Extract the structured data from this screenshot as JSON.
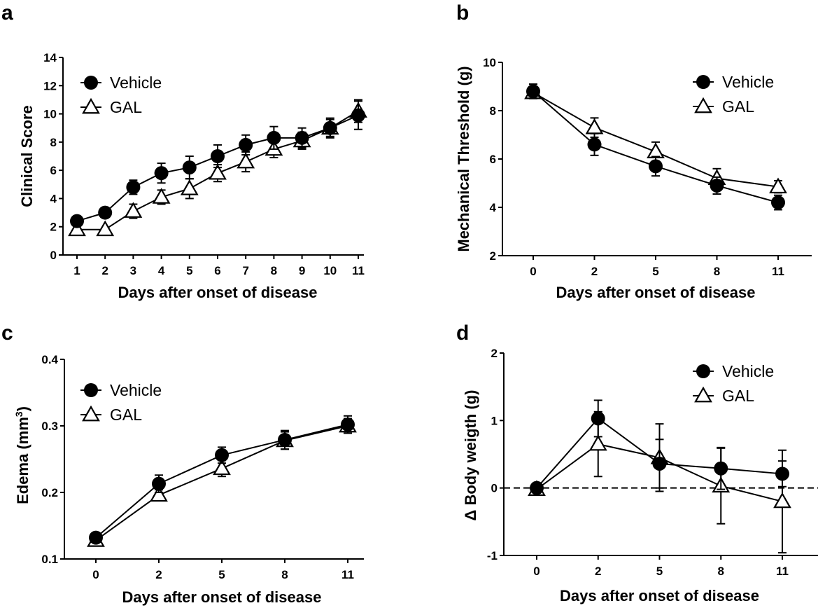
{
  "chart_data": [
    {
      "panel": "a",
      "type": "line",
      "title": "",
      "xlabel": "Days after onset of disease",
      "ylabel": "Clinical Score",
      "x_scale": "categorical",
      "categories": [
        "1",
        "2",
        "3",
        "4",
        "5",
        "6",
        "7",
        "8",
        "9",
        "10",
        "11"
      ],
      "ylim": [
        0,
        14
      ],
      "yticks": [
        0,
        2,
        4,
        6,
        8,
        10,
        12,
        14
      ],
      "legend_position": "top-left",
      "grid": false,
      "series": [
        {
          "name": "Vehicle",
          "marker": "filled-circle",
          "values": [
            2.4,
            3.0,
            4.8,
            5.8,
            6.2,
            7.0,
            7.8,
            8.3,
            8.3,
            9.0,
            9.9
          ],
          "errors": [
            0.0,
            0.0,
            0.5,
            0.7,
            0.8,
            0.8,
            0.7,
            0.8,
            0.7,
            0.7,
            1.0
          ]
        },
        {
          "name": "GAL",
          "marker": "open-triangle",
          "values": [
            1.8,
            1.8,
            3.1,
            4.1,
            4.7,
            5.8,
            6.6,
            7.5,
            8.1,
            9.0,
            10.2
          ],
          "errors": [
            0.0,
            0.0,
            0.5,
            0.5,
            0.7,
            0.6,
            0.7,
            0.6,
            0.6,
            0.6,
            0.8
          ]
        }
      ]
    },
    {
      "panel": "b",
      "type": "line",
      "title": "",
      "xlabel": "Days after onset of disease",
      "ylabel": "Mechanical Threshold (g)",
      "x_scale": "categorical",
      "categories": [
        "0",
        "2",
        "5",
        "8",
        "11"
      ],
      "ylim": [
        2,
        10
      ],
      "yticks": [
        2,
        4,
        6,
        8,
        10
      ],
      "legend_position": "top-right",
      "grid": false,
      "series": [
        {
          "name": "Vehicle",
          "marker": "filled-circle",
          "values": [
            8.8,
            6.6,
            5.7,
            4.9,
            4.2
          ],
          "errors": [
            0.3,
            0.45,
            0.4,
            0.35,
            0.3
          ]
        },
        {
          "name": "GAL",
          "marker": "open-triangle",
          "values": [
            8.75,
            7.3,
            6.3,
            5.2,
            4.85
          ],
          "errors": [
            0.2,
            0.4,
            0.4,
            0.4,
            0.25
          ]
        }
      ]
    },
    {
      "panel": "c",
      "type": "line",
      "title": "",
      "xlabel": "Days after onset of disease",
      "ylabel": "Edema (mm",
      "ylabel_superscript": "3",
      "ylabel_suffix": ")",
      "x_scale": "categorical",
      "categories": [
        "0",
        "2",
        "5",
        "8",
        "11"
      ],
      "ylim": [
        0.1,
        0.4
      ],
      "yticks": [
        0.1,
        0.2,
        0.3,
        0.4
      ],
      "legend_position": "top-left",
      "grid": false,
      "series": [
        {
          "name": "Vehicle",
          "marker": "filled-circle",
          "values": [
            0.132,
            0.213,
            0.256,
            0.279,
            0.302
          ],
          "errors": [
            0.004,
            0.013,
            0.012,
            0.014,
            0.013
          ]
        },
        {
          "name": "GAL",
          "marker": "open-triangle",
          "values": [
            0.128,
            0.196,
            0.236,
            0.278,
            0.3
          ],
          "errors": [
            0.004,
            0.008,
            0.012,
            0.013,
            0.011
          ]
        }
      ]
    },
    {
      "panel": "d",
      "type": "line",
      "title": "",
      "xlabel": "Days after onset of disease",
      "ylabel": "Δ Body weigth (g)",
      "x_scale": "categorical",
      "categories": [
        "0",
        "2",
        "5",
        "8",
        "11"
      ],
      "ylim": [
        -1,
        2
      ],
      "yticks": [
        -1,
        0,
        1,
        2
      ],
      "reference_line": 0,
      "legend_position": "top-right",
      "grid": false,
      "series": [
        {
          "name": "Vehicle",
          "marker": "filled-circle",
          "values": [
            0.0,
            1.03,
            0.36,
            0.29,
            0.21
          ],
          "errors": [
            0.0,
            0.27,
            0.36,
            0.31,
            0.19
          ]
        },
        {
          "name": "GAL",
          "marker": "open-triangle",
          "values": [
            -0.02,
            0.65,
            0.45,
            0.03,
            -0.2
          ],
          "errors": [
            0.0,
            0.48,
            0.5,
            0.56,
            0.76
          ]
        }
      ]
    }
  ]
}
